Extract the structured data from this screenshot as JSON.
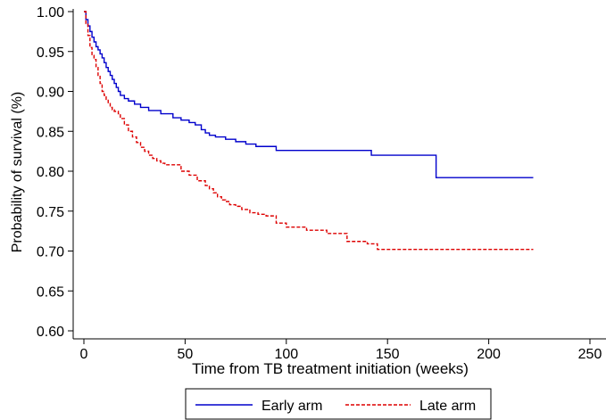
{
  "chart_data": {
    "type": "line",
    "title": "",
    "xlabel": "Time from TB treatment initiation (weeks)",
    "ylabel": "Probability of survival (%)",
    "xlim": [
      0,
      250
    ],
    "ylim": [
      0.59,
      1.0
    ],
    "x_ticks": [
      "0",
      "50",
      "100",
      "150",
      "200",
      "250"
    ],
    "x_tick_values": [
      0,
      50,
      100,
      150,
      200,
      250
    ],
    "y_ticks": [
      "0.60",
      "0.65",
      "0.70",
      "0.75",
      "0.80",
      "0.85",
      "0.90",
      "0.95",
      "1.00"
    ],
    "y_tick_values": [
      0.6,
      0.65,
      0.7,
      0.75,
      0.8,
      0.85,
      0.9,
      0.95,
      1.0
    ],
    "grid": false,
    "legend_position": "bottom",
    "step": true,
    "series": [
      {
        "name": "Early arm",
        "color": "#0000cc",
        "style": "solid",
        "x": [
          0,
          1,
          2,
          3,
          4,
          5,
          6,
          7,
          8,
          9,
          10,
          11,
          12,
          13,
          14,
          15,
          16,
          17,
          18,
          20,
          22,
          25,
          28,
          32,
          38,
          44,
          48,
          52,
          55,
          58,
          60,
          62,
          65,
          70,
          75,
          80,
          85,
          95,
          110,
          130,
          142,
          160,
          173,
          174,
          222
        ],
        "y": [
          1.0,
          0.99,
          0.982,
          0.975,
          0.968,
          0.962,
          0.956,
          0.952,
          0.947,
          0.942,
          0.936,
          0.93,
          0.925,
          0.92,
          0.915,
          0.91,
          0.905,
          0.9,
          0.895,
          0.891,
          0.888,
          0.884,
          0.88,
          0.876,
          0.872,
          0.867,
          0.864,
          0.861,
          0.858,
          0.852,
          0.848,
          0.845,
          0.843,
          0.84,
          0.837,
          0.834,
          0.831,
          0.826,
          0.826,
          0.826,
          0.82,
          0.82,
          0.82,
          0.792,
          0.792
        ]
      },
      {
        "name": "Late arm",
        "color": "#dd0000",
        "style": "dashed",
        "x": [
          0,
          1,
          2,
          3,
          4,
          5,
          6,
          7,
          8,
          9,
          10,
          11,
          12,
          13,
          14,
          15,
          16,
          17,
          18,
          20,
          22,
          24,
          26,
          28,
          30,
          32,
          34,
          36,
          38,
          40,
          44,
          48,
          52,
          56,
          60,
          62,
          64,
          66,
          68,
          70,
          72,
          75,
          78,
          82,
          86,
          90,
          95,
          100,
          110,
          120,
          130,
          140,
          145,
          222
        ],
        "y": [
          1.0,
          0.985,
          0.97,
          0.955,
          0.945,
          0.94,
          0.93,
          0.92,
          0.91,
          0.9,
          0.895,
          0.89,
          0.886,
          0.88,
          0.877,
          0.875,
          0.875,
          0.872,
          0.866,
          0.858,
          0.85,
          0.843,
          0.836,
          0.83,
          0.825,
          0.82,
          0.816,
          0.813,
          0.81,
          0.808,
          0.808,
          0.8,
          0.795,
          0.788,
          0.782,
          0.778,
          0.773,
          0.768,
          0.764,
          0.762,
          0.758,
          0.756,
          0.752,
          0.748,
          0.746,
          0.744,
          0.735,
          0.73,
          0.726,
          0.722,
          0.712,
          0.709,
          0.702,
          0.702
        ]
      }
    ]
  },
  "legend": {
    "early_label": "Early arm",
    "late_label": "Late arm"
  }
}
